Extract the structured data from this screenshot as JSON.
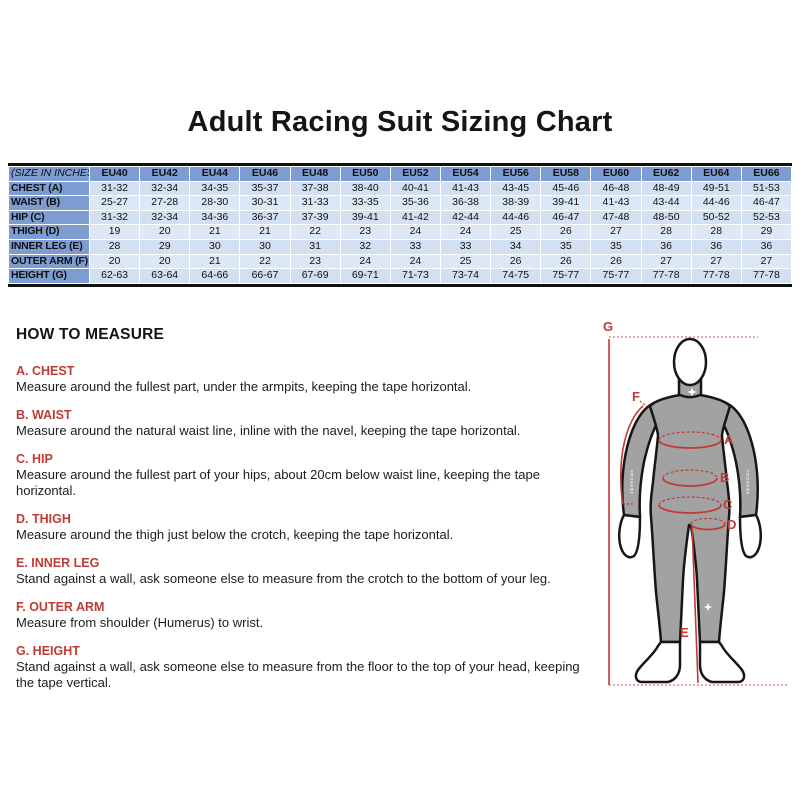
{
  "page": {
    "title": "Adult Racing Suit Sizing Chart"
  },
  "colors": {
    "header_blue": "#7D9CD2",
    "row_light_blue": "#DDE8F7",
    "row_dark_blue": "#D2E0F1",
    "accent_red": "#C13B36",
    "figure_gray": "#A2A2A2",
    "table_border_black": "#101010"
  },
  "table": {
    "corner_label": "(SIZE IN INCHES)",
    "columns": [
      "EU40",
      "EU42",
      "EU44",
      "EU46",
      "EU48",
      "EU50",
      "EU52",
      "EU54",
      "EU56",
      "EU58",
      "EU60",
      "EU62",
      "EU64",
      "EU66"
    ],
    "rows": [
      {
        "label": "CHEST (A)",
        "values": [
          "31-32",
          "32-34",
          "34-35",
          "35-37",
          "37-38",
          "38-40",
          "40-41",
          "41-43",
          "43-45",
          "45-46",
          "46-48",
          "48-49",
          "49-51",
          "51-53"
        ]
      },
      {
        "label": "WAIST (B)",
        "values": [
          "25-27",
          "27-28",
          "28-30",
          "30-31",
          "31-33",
          "33-35",
          "35-36",
          "36-38",
          "38-39",
          "39-41",
          "41-43",
          "43-44",
          "44-46",
          "46-47"
        ]
      },
      {
        "label": "HIP (C)",
        "values": [
          "31-32",
          "32-34",
          "34-36",
          "36-37",
          "37-39",
          "39-41",
          "41-42",
          "42-44",
          "44-46",
          "46-47",
          "47-48",
          "48-50",
          "50-52",
          "52-53"
        ]
      },
      {
        "label": "THIGH (D)",
        "values": [
          "19",
          "20",
          "21",
          "21",
          "22",
          "23",
          "24",
          "24",
          "25",
          "26",
          "27",
          "28",
          "28",
          "29"
        ]
      },
      {
        "label": "INNER LEG (E)",
        "values": [
          "28",
          "29",
          "30",
          "30",
          "31",
          "32",
          "33",
          "33",
          "34",
          "35",
          "35",
          "36",
          "36",
          "36"
        ]
      },
      {
        "label": "OUTER ARM (F)",
        "values": [
          "20",
          "20",
          "21",
          "22",
          "23",
          "24",
          "24",
          "25",
          "26",
          "26",
          "26",
          "27",
          "27",
          "27"
        ]
      },
      {
        "label": "HEIGHT (G)",
        "values": [
          "62-63",
          "63-64",
          "64-66",
          "66-67",
          "67-69",
          "69-71",
          "71-73",
          "73-74",
          "74-75",
          "75-77",
          "75-77",
          "77-78",
          "77-78",
          "77-78"
        ]
      }
    ]
  },
  "how_to_measure": {
    "heading": "HOW TO MEASURE",
    "sections": [
      {
        "label": "A. CHEST",
        "text": "Measure around the fullest part, under the armpits, keeping the tape horizontal."
      },
      {
        "label": "B. WAIST",
        "text": "Measure around the natural waist line, inline with the navel, keeping the tape horizontal."
      },
      {
        "label": "C. HIP",
        "text": "Measure around the fullest part of your hips, about 20cm below waist line, keeping the tape horizontal."
      },
      {
        "label": "D. THIGH",
        "text": "Measure around the thigh just below the crotch, keeping the tape horizontal."
      },
      {
        "label": "E. INNER LEG",
        "text": "Stand against a wall, ask someone else to measure from the crotch to the bottom of your leg."
      },
      {
        "label": "F. OUTER ARM",
        "text": "Measure from shoulder (Humerus) to wrist."
      },
      {
        "label": "G. HEIGHT",
        "text": "Stand against a wall, ask someone else to measure from the floor to the top of your head, keeping the tape vertical."
      }
    ]
  },
  "figure": {
    "labels": {
      "a": "A",
      "b": "B",
      "c": "C",
      "d": "D",
      "e": "E",
      "f": "F",
      "g": "G"
    },
    "sleeve_text": "alpinestars"
  }
}
